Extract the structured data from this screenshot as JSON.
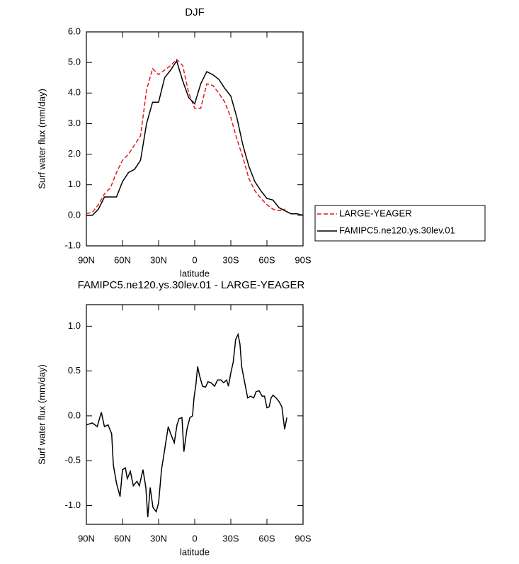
{
  "chart_data": [
    {
      "type": "line",
      "title": "DJF",
      "y_label": "Surf water flux (mm/day)",
      "x_label": "latitude",
      "x": [
        90,
        85,
        80,
        75,
        70,
        65,
        60,
        55,
        50,
        45,
        40,
        35,
        30,
        25,
        20,
        15,
        10,
        5,
        0,
        -5,
        -10,
        -15,
        -20,
        -25,
        -30,
        -35,
        -40,
        -45,
        -50,
        -55,
        -60,
        -65,
        -70,
        -75,
        -80,
        -85,
        -90
      ],
      "series": [
        {
          "name": "LARGE-YEAGER",
          "color": "#e41a1c",
          "dashed": true,
          "values": [
            0.05,
            0.1,
            0.35,
            0.7,
            0.9,
            1.4,
            1.8,
            2.0,
            2.3,
            2.6,
            4.1,
            4.8,
            4.6,
            4.75,
            4.9,
            5.1,
            4.9,
            4.0,
            3.5,
            3.5,
            4.3,
            4.25,
            4.0,
            3.7,
            3.2,
            2.5,
            1.9,
            1.2,
            0.8,
            0.55,
            0.35,
            0.2,
            0.15,
            0.2,
            null,
            null,
            null
          ]
        },
        {
          "name": "FAMIPC5.ne120.ys.30lev.01",
          "color": "#000000",
          "dashed": false,
          "values": [
            0.0,
            0.0,
            0.2,
            0.6,
            0.6,
            0.6,
            1.1,
            1.4,
            1.5,
            1.8,
            3.0,
            3.7,
            3.7,
            4.5,
            4.75,
            5.05,
            4.4,
            3.85,
            3.65,
            4.3,
            4.7,
            4.6,
            4.45,
            4.15,
            3.9,
            3.2,
            2.3,
            1.6,
            1.1,
            0.8,
            0.55,
            0.5,
            0.25,
            0.15,
            0.05,
            0.05,
            0.0
          ]
        }
      ],
      "xlim": [
        90,
        -90
      ],
      "xticks": [
        {
          "value": 90,
          "label": "90N"
        },
        {
          "value": 60,
          "label": "60N"
        },
        {
          "value": 30,
          "label": "30N"
        },
        0,
        {
          "value": -30,
          "label": "30S"
        },
        {
          "value": -60,
          "label": "60S"
        },
        {
          "value": -90,
          "label": "90S"
        }
      ],
      "ylim": [
        -1,
        6
      ],
      "yticks": [
        {
          "value": -1,
          "label": "-1.0"
        },
        {
          "value": 0,
          "label": "0.0"
        },
        {
          "value": 1,
          "label": "1.0"
        },
        {
          "value": 2,
          "label": "2.0"
        },
        {
          "value": 3,
          "label": "3.0"
        },
        {
          "value": 4,
          "label": "4.0"
        },
        {
          "value": 5,
          "label": "5.0"
        },
        {
          "value": 6,
          "label": "6.0"
        }
      ],
      "legend": "outside-right"
    },
    {
      "type": "line",
      "title": "FAMIPC5.ne120.ys.30lev.01 - LARGE-YEAGER",
      "y_label": "Surf water flux (mm/day)",
      "x_label": "latitude",
      "x": [
        90,
        85,
        81,
        77.6,
        75,
        72,
        69,
        67.6,
        65,
        62,
        60,
        57.6,
        56,
        53.5,
        51,
        48,
        46,
        43,
        40.6,
        39,
        37,
        34.7,
        32,
        30,
        27.6,
        25,
        22,
        20,
        17,
        14.7,
        13,
        10.6,
        9,
        6.5,
        4,
        1.8,
        0.6,
        -1,
        -2.4,
        -4,
        -6.5,
        -9,
        -11,
        -13.5,
        -16.5,
        -19,
        -21.8,
        -24,
        -26.5,
        -28,
        -30,
        -32,
        -34,
        -36,
        -37.6,
        -39,
        -41.8,
        -44,
        -46.5,
        -49,
        -51,
        -53.5,
        -56,
        -58,
        -60,
        -61.8,
        -63.5,
        -65,
        -67.6,
        -70,
        -72.4,
        -74.7,
        -76.5
      ],
      "color": "#000000",
      "values": [
        -0.1,
        -0.08,
        -0.12,
        0.04,
        -0.12,
        -0.1,
        -0.2,
        -0.55,
        -0.75,
        -0.9,
        -0.6,
        -0.58,
        -0.7,
        -0.62,
        -0.78,
        -0.73,
        -0.78,
        -0.6,
        -0.8,
        -1.13,
        -0.8,
        -1.02,
        -1.07,
        -0.97,
        -0.6,
        -0.38,
        -0.12,
        -0.2,
        -0.3,
        -0.1,
        -0.03,
        -0.02,
        -0.4,
        -0.15,
        -0.02,
        0.0,
        0.2,
        0.35,
        0.55,
        0.45,
        0.33,
        0.32,
        0.38,
        0.37,
        0.33,
        0.4,
        0.4,
        0.37,
        0.4,
        0.33,
        0.48,
        0.6,
        0.85,
        0.91,
        0.8,
        0.55,
        0.35,
        0.2,
        0.22,
        0.2,
        0.27,
        0.28,
        0.22,
        0.22,
        0.09,
        0.1,
        0.2,
        0.23,
        0.2,
        0.16,
        0.1,
        -0.15,
        -0.02
      ],
      "xlim": [
        90,
        -90
      ],
      "xticks": [
        {
          "value": 90,
          "label": "90N"
        },
        {
          "value": 60,
          "label": "60N"
        },
        {
          "value": 30,
          "label": "30N"
        },
        0,
        {
          "value": -30,
          "label": "30S"
        },
        {
          "value": -60,
          "label": "60S"
        },
        {
          "value": -90,
          "label": "90S"
        }
      ],
      "ylim": [
        -1.21,
        1.24
      ],
      "yticks": [
        {
          "value": -1,
          "label": "-1.0"
        },
        {
          "value": -0.5,
          "label": "-0.5"
        },
        {
          "value": 0,
          "label": "0.0"
        },
        {
          "value": 0.5,
          "label": "0.5"
        },
        {
          "value": 1,
          "label": "1.0"
        }
      ]
    }
  ]
}
